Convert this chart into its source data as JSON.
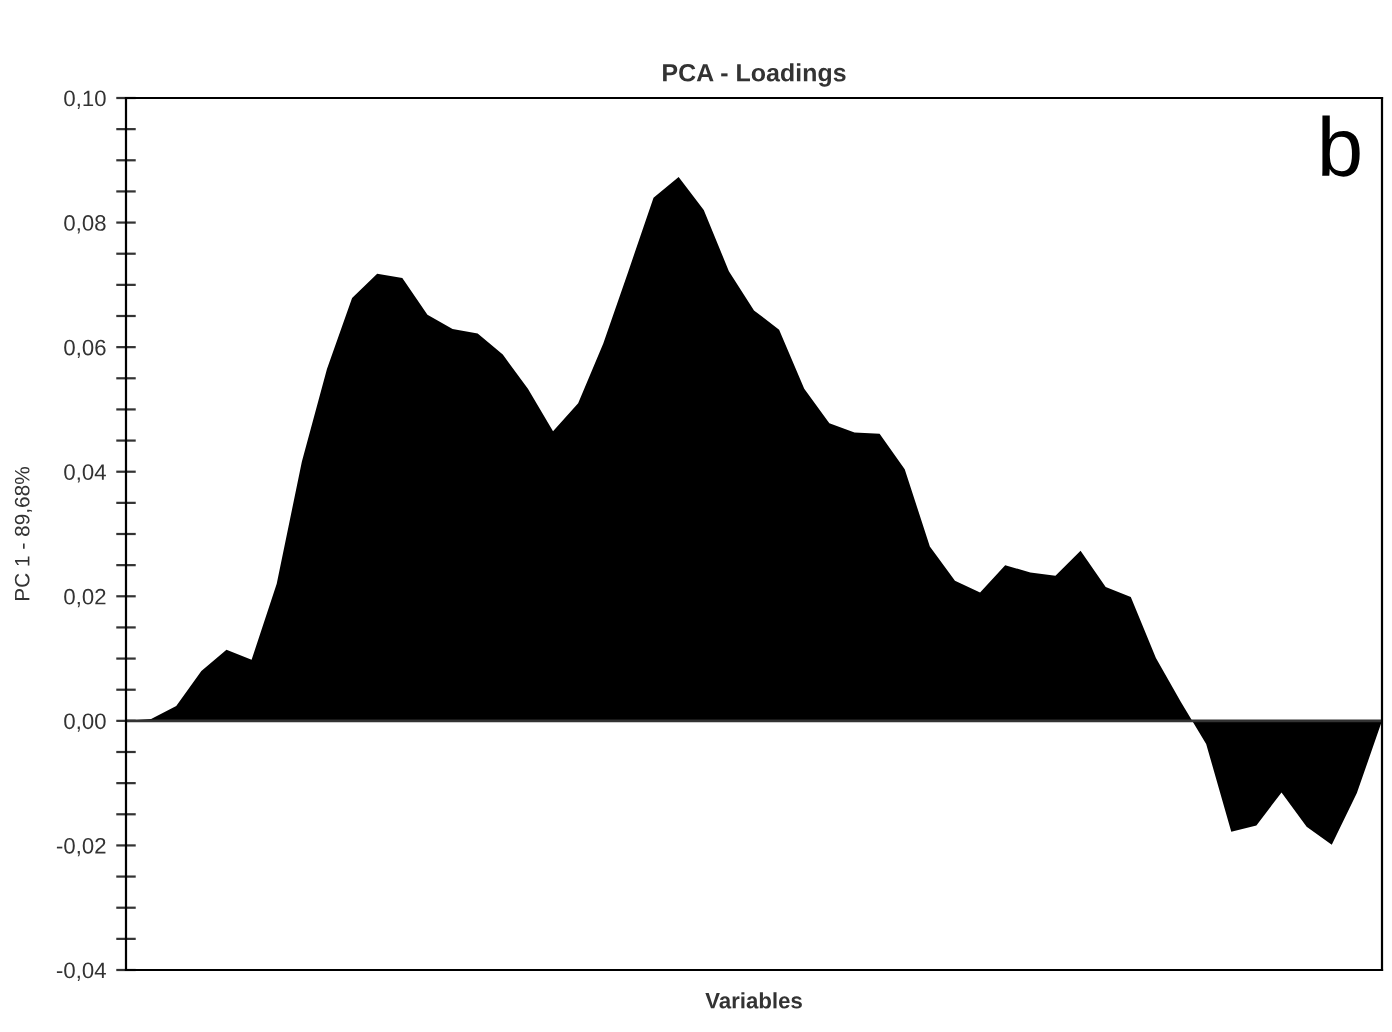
{
  "chart_data": {
    "type": "area",
    "title": "PCA - Loadings",
    "xlabel": "Variables",
    "ylabel": "PC 1 - 89,68%",
    "annotations": [
      "b"
    ],
    "categories": [
      null,
      null,
      null,
      null,
      null,
      null,
      null,
      null,
      null,
      null,
      null,
      null,
      null,
      null,
      null,
      null,
      null,
      null,
      null,
      null,
      null,
      null,
      null,
      null,
      null,
      null,
      null,
      null,
      null,
      null,
      null,
      null,
      null,
      null,
      null,
      null,
      null,
      null,
      null,
      null,
      null,
      null,
      null,
      null,
      null,
      null,
      null,
      null,
      null,
      null,
      null
    ],
    "series": [
      {
        "color": "#000000",
        "values": [
          0,
          0.0003,
          0.0024,
          0.008,
          0.0114,
          0.0098,
          0.022,
          0.0416,
          0.0565,
          0.0679,
          0.0718,
          0.0711,
          0.0652,
          0.0629,
          0.0622,
          0.0588,
          0.0533,
          0.0465,
          0.051,
          0.0606,
          0.0722,
          0.084,
          0.0873,
          0.082,
          0.0722,
          0.0659,
          0.0628,
          0.0533,
          0.0478,
          0.0463,
          0.0461,
          0.0404,
          0.028,
          0.0225,
          0.0206,
          0.025,
          0.0238,
          0.0233,
          0.0273,
          0.0215,
          0.0199,
          0.0101,
          0.003,
          -0.0037,
          -0.0178,
          -0.0168,
          -0.0115,
          -0.017,
          -0.0199,
          -0.0116,
          0
        ]
      }
    ],
    "ylim": [
      -0.04,
      0.1
    ],
    "yticks": [
      {
        "value": -0.04,
        "label": "-0,04"
      },
      {
        "value": -0.035,
        "label": null
      },
      {
        "value": -0.03,
        "label": null
      },
      {
        "value": -0.025,
        "label": null
      },
      {
        "value": -0.02,
        "label": "-0,02"
      },
      {
        "value": -0.015,
        "label": null
      },
      {
        "value": -0.01,
        "label": null
      },
      {
        "value": -0.005,
        "label": null
      },
      {
        "value": 0,
        "label": "0,00"
      },
      {
        "value": 0.005,
        "label": null
      },
      {
        "value": 0.01,
        "label": null
      },
      {
        "value": 0.015,
        "label": null
      },
      {
        "value": 0.02,
        "label": "0,02"
      },
      {
        "value": 0.025,
        "label": null
      },
      {
        "value": 0.03,
        "label": null
      },
      {
        "value": 0.035,
        "label": null
      },
      {
        "value": 0.04,
        "label": "0,04"
      },
      {
        "value": 0.045,
        "label": null
      },
      {
        "value": 0.05,
        "label": null
      },
      {
        "value": 0.055,
        "label": null
      },
      {
        "value": 0.06,
        "label": "0,06"
      },
      {
        "value": 0.065,
        "label": null
      },
      {
        "value": 0.07,
        "label": null
      },
      {
        "value": 0.075,
        "label": null
      },
      {
        "value": 0.08,
        "label": "0,08"
      },
      {
        "value": 0.085,
        "label": null
      },
      {
        "value": 0.09,
        "label": null
      },
      {
        "value": 0.095,
        "label": null
      },
      {
        "value": 0.1,
        "label": "0,10"
      }
    ],
    "tick_labels": "y"
  }
}
